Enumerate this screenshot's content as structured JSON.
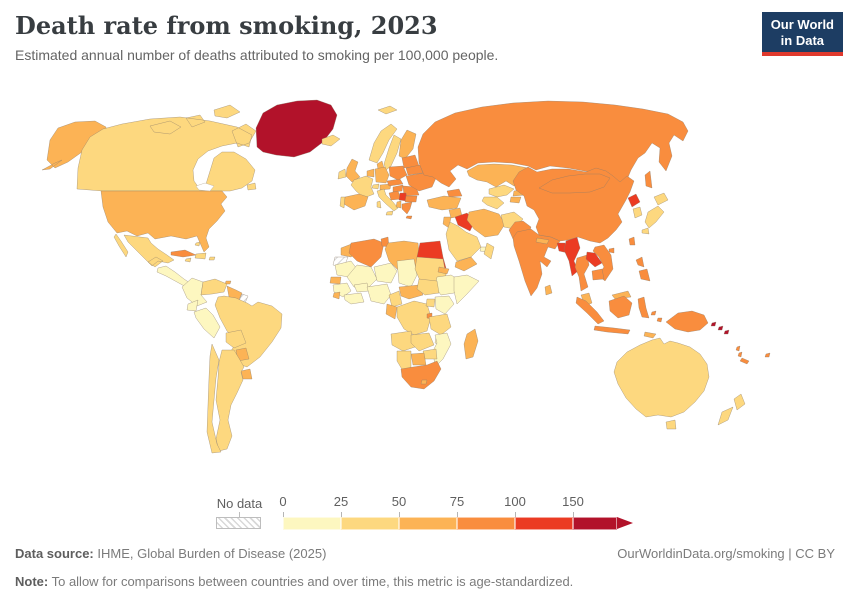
{
  "header": {
    "title": "Death rate from smoking, 2023",
    "subtitle": "Estimated annual number of deaths attributed to smoking per 100,000 people.",
    "logo_line1": "Our World",
    "logo_line2": "in Data",
    "logo_bg": "#1d3d63",
    "logo_bar": "#e0392d"
  },
  "legend": {
    "no_data_label": "No data",
    "ticks": [
      "0",
      "25",
      "50",
      "75",
      "100",
      "150"
    ]
  },
  "footer": {
    "source_label": "Data source:",
    "source_text": " IHME, Global Burden of Disease (2025)",
    "note_label": "Note:",
    "note_text": " To allow for comparisons between countries and over time, this metric is age-standardized.",
    "link": "OurWorldinData.org/smoking | CC BY"
  },
  "chart_data": {
    "type": "choropleth",
    "title": "Death rate from smoking, 2023",
    "unit": "deaths per 100,000 people (age-standardized)",
    "year": 2023,
    "legend_thresholds": [
      0,
      25,
      50,
      75,
      100,
      150
    ],
    "bins": [
      {
        "range": "0-25",
        "color": "#fdf7c0"
      },
      {
        "range": "25-50",
        "color": "#fdd87f"
      },
      {
        "range": "50-75",
        "color": "#fcb355"
      },
      {
        "range": "75-100",
        "color": "#f98d3e"
      },
      {
        "range": "100-150",
        "color": "#eb3b23"
      },
      {
        "range": "150+",
        "color": "#b2122a"
      }
    ],
    "no_data": {
      "label": "No data",
      "pattern": "diagonal-hatch",
      "hatch_color": "#cccccc"
    },
    "border_color": "#8a7a68",
    "region_bins": {
      "greenland": 5,
      "canada": 1,
      "alaska": 2,
      "usa": 2,
      "mexico": 1,
      "central_america": 0,
      "cuba": 3,
      "jamaica": 1,
      "hispaniola": 1,
      "puerto_rico": 1,
      "bahamas": 1,
      "trinidad": 2,
      "colombia": 0,
      "venezuela": 1,
      "guyana_suriname": 2,
      "french_guiana": "no_data",
      "ecuador": 0,
      "peru": 0,
      "brazil": 1,
      "bolivia": 1,
      "paraguay": 2,
      "uruguay": 2,
      "argentina": 1,
      "chile": 1,
      "iceland": 1,
      "svalbard": 1,
      "norway": 1,
      "sweden": 1,
      "finland": 2,
      "denmark": 2,
      "uk": 2,
      "ireland": 1,
      "benelux": 2,
      "germany": 2,
      "france": 1,
      "spain": 2,
      "portugal": 1,
      "switzerland": 1,
      "austria": 2,
      "italy": 1,
      "czech_slovakia": 3,
      "poland": 3,
      "hungary": 3,
      "romania": 3,
      "croatia_bosnia": 3,
      "serbia": 4,
      "bulgaria": 3,
      "albania": 2,
      "greece": 3,
      "baltics": 3,
      "belarus": 3,
      "ukraine": 3,
      "russia": 3,
      "kazakhstan": 2,
      "uzbekistan": 1,
      "turkmenistan": 1,
      "kyrgyzstan": 2,
      "tajikistan": 2,
      "caucasus": 3,
      "turkey": 2,
      "syria": 2,
      "jordan_israel": 2,
      "iraq": 4,
      "iran": 2,
      "afghanistan": 1,
      "pakistan": 3,
      "saudi_arabia": 1,
      "uae": 0,
      "oman": 1,
      "yemen": 2,
      "india": 3,
      "nepal": 2,
      "bangladesh": 4,
      "sri_lanka": 2,
      "myanmar": 4,
      "thailand": 3,
      "laos": 4,
      "vietnam": 3,
      "cambodia": 3,
      "malaysia": 2,
      "china": 3,
      "mongolia": 3,
      "north_korea": 4,
      "south_korea": 1,
      "japan": 1,
      "taiwan": 3,
      "philippines": 3,
      "indonesia": 3,
      "timor": 2,
      "new_guinea": 3,
      "solomon_islands": 5,
      "vanuatu": 3,
      "new_caledonia": 3,
      "fiji": 3,
      "australia": 1,
      "new_zealand": 1,
      "morocco": 2,
      "western_sahara": "no_data",
      "algeria": 3,
      "tunisia": 3,
      "libya": 2,
      "egypt": 4,
      "mauritania": 0,
      "mali": 0,
      "senegal": 2,
      "guinea": 0,
      "sierra_leone": 2,
      "cote_ghana": 0,
      "burkina": 0,
      "niger": 0,
      "nigeria": 0,
      "chad": 0,
      "sudan": 1,
      "eritrea": 2,
      "ethiopia": 0,
      "somalia": 0,
      "cameroon": 1,
      "car": 2,
      "south_sudan": 1,
      "drc": 1,
      "gabon_congo": 2,
      "uganda": 1,
      "kenya": 0,
      "rwanda_burundi": 3,
      "tanzania": 1,
      "angola": 1,
      "zambia": 1,
      "malawi": 0,
      "mozambique": 0,
      "zimbabwe": 1,
      "botswana": 2,
      "namibia": 1,
      "south_africa": 3,
      "lesotho": 2,
      "madagascar": 2
    }
  }
}
